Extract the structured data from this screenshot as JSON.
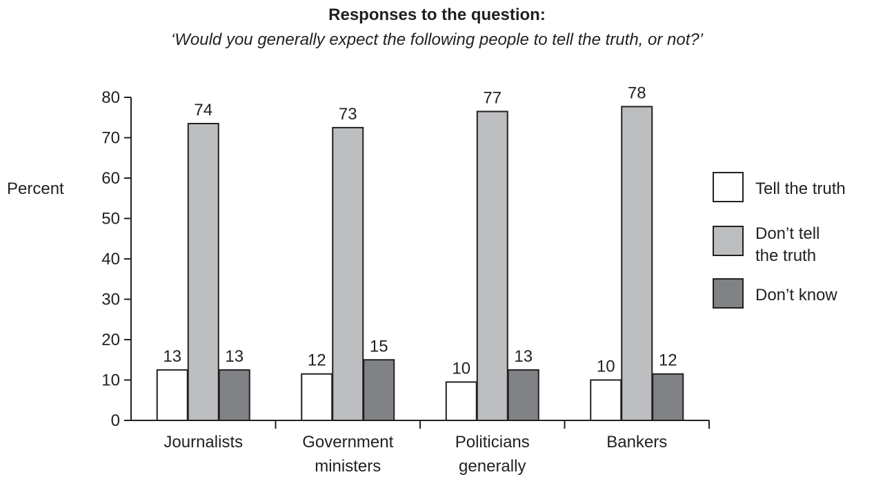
{
  "chart_data": {
    "type": "bar",
    "title": "Responses to the question:",
    "subtitle": "‘Would you generally expect the following people to tell the truth, or not?’",
    "ylabel": "Percent",
    "xlabel": "",
    "ylim": [
      0,
      80
    ],
    "yticks": [
      0,
      10,
      20,
      30,
      40,
      50,
      60,
      70,
      80
    ],
    "categories": [
      [
        "Journalists"
      ],
      [
        "Government",
        "ministers"
      ],
      [
        "Politicians",
        "generally"
      ],
      [
        "Bankers"
      ]
    ],
    "series": [
      {
        "name": [
          "Tell the truth"
        ],
        "values": [
          13,
          12,
          10,
          10
        ],
        "bar_values": [
          12.5,
          11.5,
          9.5,
          10
        ],
        "color": "#ffffff"
      },
      {
        "name": [
          "Don’t tell",
          "the truth"
        ],
        "values": [
          74,
          73,
          77,
          78
        ],
        "bar_values": [
          73.5,
          72.5,
          76.5,
          77.7
        ],
        "color": "#bcbec0"
      },
      {
        "name": [
          "Don’t know"
        ],
        "values": [
          13,
          15,
          13,
          12
        ],
        "bar_values": [
          12.5,
          15,
          12.5,
          11.5
        ],
        "color": "#808285"
      }
    ],
    "grid": false,
    "legend_position": "right"
  }
}
